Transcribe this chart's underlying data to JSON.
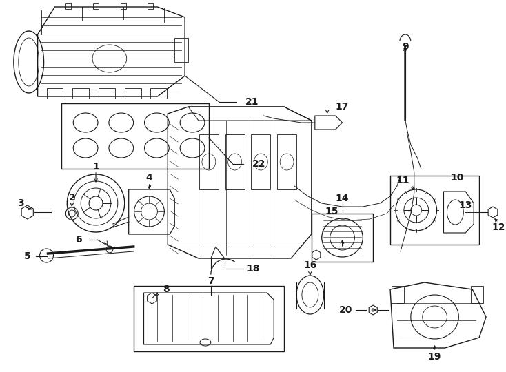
{
  "bg": "#ffffff",
  "lc": "#1a1a1a",
  "figsize": [
    7.34,
    5.4
  ],
  "dpi": 100,
  "label_fs": 9,
  "bold_fs": 10
}
